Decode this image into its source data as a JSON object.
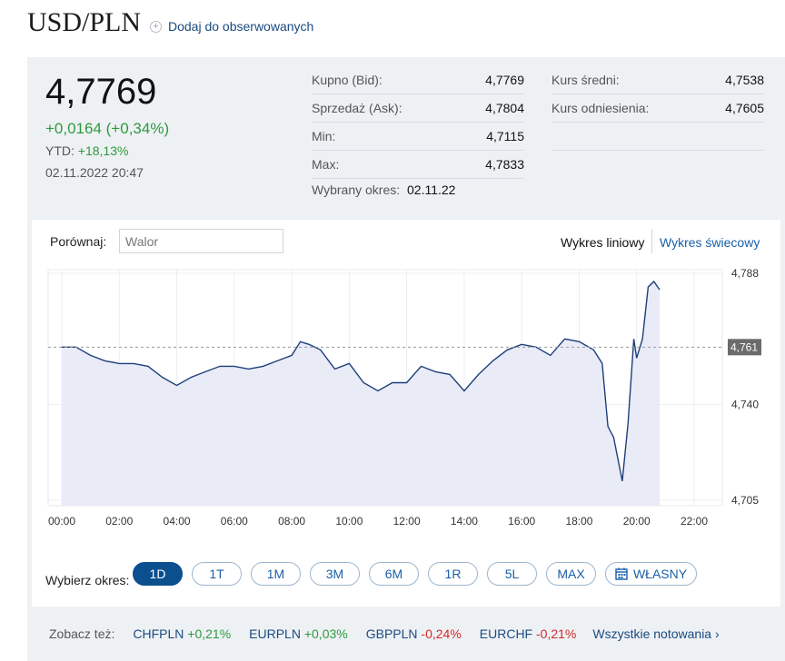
{
  "header": {
    "title": "USD/PLN",
    "watch_label": "Dodaj do obserwowanych"
  },
  "quote": {
    "price": "4,7769",
    "change": "+0,0164 (+0,34%)",
    "ytd_label": "YTD:",
    "ytd_value": "+18,13%",
    "datetime": "02.11.2022 20:47"
  },
  "stats": {
    "bid_label": "Kupno (Bid):",
    "bid": "4,7769",
    "ask_label": "Sprzedaż (Ask):",
    "ask": "4,7804",
    "min_label": "Min:",
    "min": "4,7115",
    "max_label": "Max:",
    "max": "4,7833",
    "avg_label": "Kurs średni:",
    "avg": "4,7538",
    "ref_label": "Kurs odniesienia:",
    "ref": "4,7605",
    "period_label": "Wybrany okres:",
    "period": "02.11.22"
  },
  "compare": {
    "label": "Porównaj:",
    "placeholder": "Walor"
  },
  "chart_types": {
    "line": "Wykres liniowy",
    "candle": "Wykres świecowy"
  },
  "chart_data": {
    "type": "line",
    "x_ticks": [
      "00:00",
      "02:00",
      "04:00",
      "06:00",
      "08:00",
      "10:00",
      "12:00",
      "14:00",
      "16:00",
      "18:00",
      "20:00",
      "22:00"
    ],
    "y_ticks": [
      "4,788",
      "4,740",
      "4,705"
    ],
    "y_tick_values": [
      4.788,
      4.74,
      4.705
    ],
    "reference_label": "4,761",
    "reference_value": 4.761,
    "ylim": [
      4.705,
      4.788
    ],
    "xlim_hours": [
      0,
      22.5
    ],
    "x_hours": [
      0,
      0.5,
      1,
      1.5,
      2,
      2.5,
      3,
      3.5,
      4,
      4.5,
      5,
      5.5,
      6,
      6.5,
      7,
      7.5,
      8,
      8.3,
      8.6,
      9,
      9.5,
      10,
      10.5,
      11,
      11.5,
      12,
      12.5,
      13,
      13.5,
      14,
      14.5,
      15,
      15.5,
      16,
      16.5,
      17,
      17.5,
      18,
      18.5,
      18.8,
      19,
      19.2,
      19.5,
      19.7,
      19.9,
      20,
      20.2,
      20.4,
      20.6,
      20.8
    ],
    "values": [
      4.761,
      4.761,
      4.758,
      4.756,
      4.755,
      4.755,
      4.754,
      4.75,
      4.747,
      4.75,
      4.752,
      4.754,
      4.754,
      4.753,
      4.754,
      4.756,
      4.758,
      4.763,
      4.762,
      4.76,
      4.753,
      4.755,
      4.748,
      4.745,
      4.748,
      4.748,
      4.754,
      4.752,
      4.751,
      4.745,
      4.751,
      4.756,
      4.76,
      4.762,
      4.761,
      4.758,
      4.764,
      4.763,
      4.76,
      4.755,
      4.732,
      4.728,
      4.712,
      4.733,
      4.764,
      4.757,
      4.764,
      4.783,
      4.785,
      4.782
    ],
    "series_color": "#1e3f7a"
  },
  "periods": {
    "label": "Wybierz okres:",
    "items": [
      "1D",
      "1T",
      "1M",
      "3M",
      "6M",
      "1R",
      "5L",
      "MAX",
      "WŁASNY"
    ],
    "active": "1D"
  },
  "see_also": {
    "label": "Zobacz też:",
    "items": [
      {
        "name": "CHFPLN",
        "change": "+0,21%"
      },
      {
        "name": "EURPLN",
        "change": "+0,03%"
      },
      {
        "name": "GBPPLN",
        "change": "-0,24%"
      },
      {
        "name": "EURCHF",
        "change": "-0,21%"
      }
    ],
    "all_label": "Wszystkie notowania"
  }
}
